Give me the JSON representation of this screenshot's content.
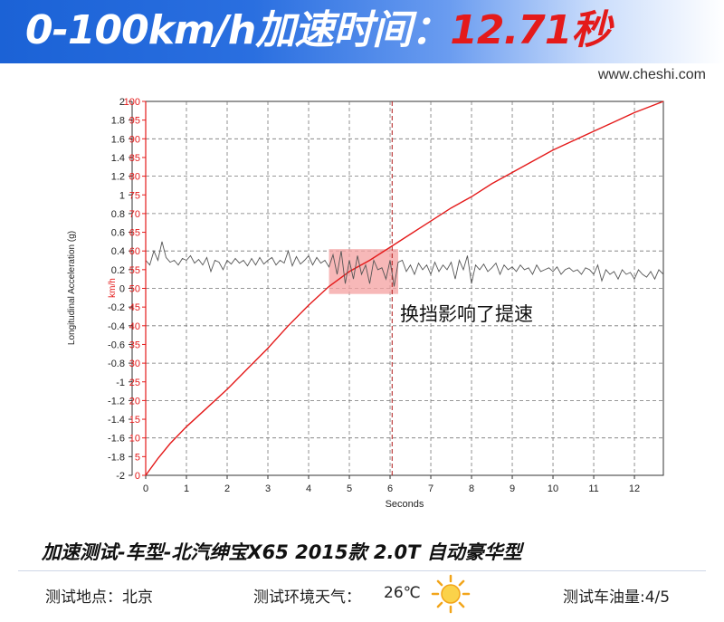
{
  "header": {
    "title_prefix": "0-100km/h加速时间：",
    "title_value": "12.71秒"
  },
  "website": "www.cheshi.com",
  "colors": {
    "speed_line": "#e41a1a",
    "accel_line": "#555555",
    "highlight": "#f4a0a0",
    "banner_blue": "#1b62d6"
  },
  "chart_data": {
    "type": "line",
    "xlabel": "Seconds",
    "x_ticks": [
      "0",
      "1",
      "2",
      "3",
      "4",
      "5",
      "6",
      "7",
      "8",
      "9",
      "10",
      "11",
      "12"
    ],
    "xlim": [
      0,
      12.71
    ],
    "left_axis": {
      "label": "Longitudinal Acceleration (g)",
      "ylim": [
        -2,
        2
      ],
      "ticks": [
        "2",
        "1.8",
        "1.6",
        "1.4",
        "1.2",
        "1",
        "0.8",
        "0.6",
        "0.4",
        "0.2",
        "0",
        "-0.2",
        "-0.4",
        "-0.6",
        "-0.8",
        "-1",
        "-1.2",
        "-1.4",
        "-1.6",
        "-1.8",
        "-2"
      ]
    },
    "right_axis": {
      "label": "km/h",
      "ylim": [
        0,
        100
      ],
      "ticks": [
        "100",
        "95",
        "90",
        "85",
        "80",
        "75",
        "70",
        "65",
        "60",
        "55",
        "50",
        "45",
        "40",
        "35",
        "30",
        "25",
        "20",
        "15",
        "10",
        "5",
        "0"
      ]
    },
    "series": [
      {
        "axis": "speed",
        "x": [
          0,
          0.3,
          0.6,
          1,
          1.5,
          2,
          2.5,
          3,
          3.5,
          4,
          4.5,
          5,
          5.5,
          6,
          6.5,
          7,
          7.5,
          8,
          8.5,
          9,
          9.5,
          10,
          10.5,
          11,
          11.5,
          12,
          12.71
        ],
        "values": [
          0,
          4.5,
          8.5,
          13,
          18,
          23,
          28.5,
          34,
          40,
          45.5,
          50.5,
          54.5,
          57.5,
          61,
          64.5,
          68,
          71.5,
          74.5,
          78,
          81,
          84,
          87,
          89.5,
          92,
          94.5,
          97,
          100
        ]
      },
      {
        "axis": "acceleration",
        "x": [
          0,
          0.1,
          0.2,
          0.3,
          0.4,
          0.5,
          0.6,
          0.7,
          0.8,
          0.9,
          1,
          1.1,
          1.2,
          1.3,
          1.4,
          1.5,
          1.6,
          1.7,
          1.8,
          1.9,
          2,
          2.1,
          2.2,
          2.3,
          2.4,
          2.5,
          2.6,
          2.7,
          2.8,
          2.9,
          3,
          3.1,
          3.2,
          3.3,
          3.4,
          3.5,
          3.6,
          3.7,
          3.8,
          3.9,
          4,
          4.1,
          4.2,
          4.3,
          4.4,
          4.5,
          4.6,
          4.7,
          4.8,
          4.9,
          5,
          5.1,
          5.2,
          5.3,
          5.4,
          5.5,
          5.6,
          5.7,
          5.8,
          5.9,
          6,
          6.1,
          6.2,
          6.3,
          6.4,
          6.5,
          6.6,
          6.7,
          6.8,
          6.9,
          7,
          7.1,
          7.2,
          7.3,
          7.4,
          7.5,
          7.6,
          7.7,
          7.8,
          7.9,
          8,
          8.1,
          8.2,
          8.3,
          8.4,
          8.5,
          8.6,
          8.7,
          8.8,
          8.9,
          9,
          9.1,
          9.2,
          9.3,
          9.4,
          9.5,
          9.6,
          9.7,
          9.8,
          9.9,
          10,
          10.1,
          10.2,
          10.3,
          10.4,
          10.5,
          10.6,
          10.7,
          10.8,
          10.9,
          11,
          11.1,
          11.2,
          11.3,
          11.4,
          11.5,
          11.6,
          11.7,
          11.8,
          11.9,
          12,
          12.1,
          12.2,
          12.3,
          12.4,
          12.5,
          12.6,
          12.71
        ],
        "values": [
          0.3,
          0.25,
          0.4,
          0.3,
          0.5,
          0.33,
          0.28,
          0.3,
          0.25,
          0.32,
          0.3,
          0.35,
          0.27,
          0.31,
          0.25,
          0.33,
          0.18,
          0.3,
          0.28,
          0.2,
          0.3,
          0.26,
          0.32,
          0.27,
          0.3,
          0.24,
          0.32,
          0.25,
          0.33,
          0.26,
          0.3,
          0.33,
          0.25,
          0.3,
          0.27,
          0.4,
          0.24,
          0.34,
          0.26,
          0.3,
          0.35,
          0.25,
          0.33,
          0.27,
          0.3,
          0.23,
          0.36,
          0.15,
          0.4,
          0.05,
          0.3,
          0.1,
          0.35,
          0.15,
          0.25,
          0.05,
          0.3,
          0.2,
          0.22,
          0.1,
          0.3,
          0.02,
          0.28,
          0.3,
          0.18,
          0.25,
          0.15,
          0.27,
          0.2,
          0.25,
          0.15,
          0.28,
          0.18,
          0.25,
          0.2,
          0.28,
          0.1,
          0.3,
          0.2,
          0.35,
          0.05,
          0.25,
          0.2,
          0.26,
          0.18,
          0.22,
          0.27,
          0.15,
          0.25,
          0.2,
          0.23,
          0.18,
          0.25,
          0.2,
          0.22,
          0.15,
          0.25,
          0.18,
          0.2,
          0.22,
          0.18,
          0.23,
          0.15,
          0.2,
          0.22,
          0.18,
          0.2,
          0.15,
          0.22,
          0.2,
          0.15,
          0.25,
          0.08,
          0.2,
          0.15,
          0.18,
          0.1,
          0.2,
          0.15,
          0.17,
          0.1,
          0.2,
          0.15,
          0.12,
          0.18,
          0.1,
          0.2,
          0.15
        ]
      }
    ],
    "marker_x": 6.05,
    "highlight_x": [
      4.5,
      6.2
    ],
    "highlight_speed": [
      48.5,
      60.5
    ],
    "annotation": "换挡影响了提速"
  },
  "footer": {
    "test_title": "加速测试-车型-北汽绅宝X65 2015款 2.0T 自动豪华型",
    "location": "测试地点：北京",
    "weather_label": "测试环境天气：",
    "temperature": "26℃",
    "weather_icon": "sun-icon",
    "fuel": "测试车油量:4/5"
  }
}
